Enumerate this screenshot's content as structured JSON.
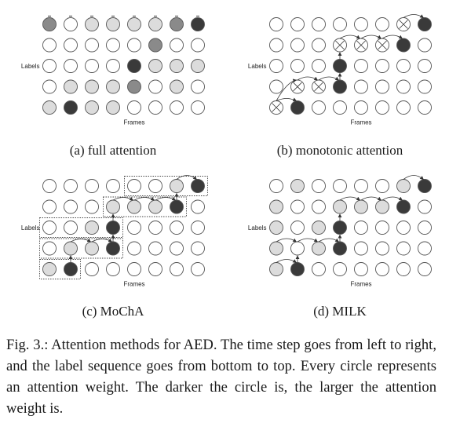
{
  "figure": {
    "label_axis": "Labels",
    "frame_axis": "Frames",
    "panels": [
      {
        "id": "a",
        "caption": "(a) full attention",
        "rows_top_to_bottom": [
          [
            "mid",
            "empty",
            "light",
            "light",
            "light",
            "light",
            "mid",
            "dark"
          ],
          [
            "empty",
            "empty",
            "empty",
            "empty",
            "empty",
            "mid",
            "empty",
            "empty"
          ],
          [
            "empty",
            "empty",
            "empty",
            "empty",
            "dark",
            "light",
            "light",
            "light"
          ],
          [
            "empty",
            "light",
            "light",
            "light",
            "mid",
            "empty",
            "light",
            "empty"
          ],
          [
            "light",
            "dark",
            "light",
            "light",
            "empty",
            "empty",
            "empty",
            "empty"
          ]
        ]
      },
      {
        "id": "b",
        "caption": "(b) monotonic attention",
        "rows_top_to_bottom": [
          [
            "empty",
            "empty",
            "empty",
            "empty",
            "empty",
            "empty",
            "cross",
            "dark"
          ],
          [
            "empty",
            "empty",
            "empty",
            "cross",
            "cross",
            "cross",
            "dark",
            "empty"
          ],
          [
            "empty",
            "empty",
            "empty",
            "dark",
            "empty",
            "empty",
            "empty",
            "empty"
          ],
          [
            "empty",
            "cross",
            "cross",
            "dark",
            "empty",
            "empty",
            "empty",
            "empty"
          ],
          [
            "cross",
            "dark",
            "empty",
            "empty",
            "empty",
            "empty",
            "empty",
            "empty"
          ]
        ]
      },
      {
        "id": "c",
        "caption": "(c) MoChA",
        "rows_top_to_bottom": [
          [
            "empty",
            "empty",
            "empty",
            "empty",
            "empty",
            "empty",
            "light",
            "dark"
          ],
          [
            "empty",
            "empty",
            "empty",
            "light",
            "light",
            "light",
            "dark",
            "empty"
          ],
          [
            "empty",
            "empty",
            "light",
            "dark",
            "empty",
            "empty",
            "empty",
            "empty"
          ],
          [
            "empty",
            "light",
            "light",
            "dark",
            "empty",
            "empty",
            "empty",
            "empty"
          ],
          [
            "light",
            "dark",
            "empty",
            "empty",
            "empty",
            "empty",
            "empty",
            "empty"
          ]
        ]
      },
      {
        "id": "d",
        "caption": "(d) MILK",
        "rows_top_to_bottom": [
          [
            "empty",
            "light",
            "empty",
            "empty",
            "empty",
            "empty",
            "light",
            "dark"
          ],
          [
            "light",
            "empty",
            "empty",
            "light",
            "light",
            "light",
            "dark",
            "empty"
          ],
          [
            "light",
            "empty",
            "light",
            "dark",
            "empty",
            "empty",
            "empty",
            "empty"
          ],
          [
            "light",
            "empty",
            "light",
            "dark",
            "empty",
            "empty",
            "empty",
            "empty"
          ],
          [
            "light",
            "dark",
            "empty",
            "empty",
            "empty",
            "empty",
            "empty",
            "empty"
          ]
        ]
      }
    ],
    "colors": {
      "empty": "#ffffff",
      "light": "#dcdcdc",
      "mid": "#8a8a8a",
      "dark": "#3a3a3a",
      "stroke": "#555555",
      "dotted_box": "#444444"
    }
  },
  "caption": "Fig. 3.: Attention methods for AED. The time step goes from left to right, and the label sequence goes from bottom to top. Every circle represents an attention weight. The darker the circle is, the larger the attention weight is."
}
